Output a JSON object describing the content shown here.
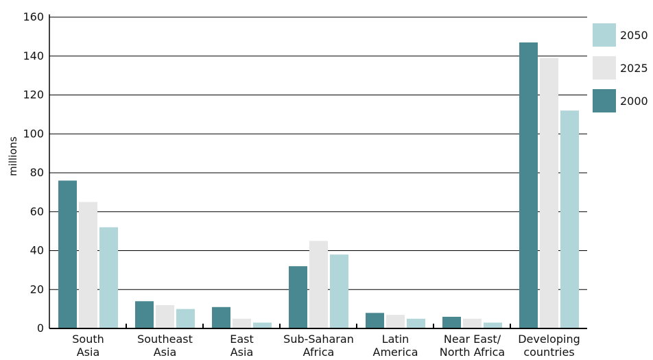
{
  "chart_data": {
    "type": "bar",
    "title": "",
    "xlabel": "",
    "ylabel": "millions",
    "ylim": [
      0,
      160
    ],
    "yticks": [
      0,
      20,
      40,
      60,
      80,
      100,
      120,
      140,
      160
    ],
    "grid": true,
    "legend_position": "right",
    "categories": [
      [
        "South",
        "Asia"
      ],
      [
        "Southeast",
        "Asia"
      ],
      [
        "East",
        "Asia"
      ],
      [
        "Sub-Saharan",
        "Africa"
      ],
      [
        "Latin",
        "America"
      ],
      [
        "Near East/",
        "North Africa"
      ],
      [
        "Developing",
        "countries"
      ]
    ],
    "series": [
      {
        "name": "2000",
        "color": "#4a8891",
        "values": [
          76,
          14,
          11,
          32,
          8,
          6,
          147
        ]
      },
      {
        "name": "2025",
        "color": "#e6e6e6",
        "values": [
          65,
          12,
          5,
          45,
          7,
          5,
          139
        ]
      },
      {
        "name": "2050",
        "color": "#b0d6da",
        "values": [
          52,
          10,
          3,
          38,
          5,
          3,
          112
        ]
      }
    ],
    "legend_order": [
      "2050",
      "2025",
      "2000"
    ]
  }
}
